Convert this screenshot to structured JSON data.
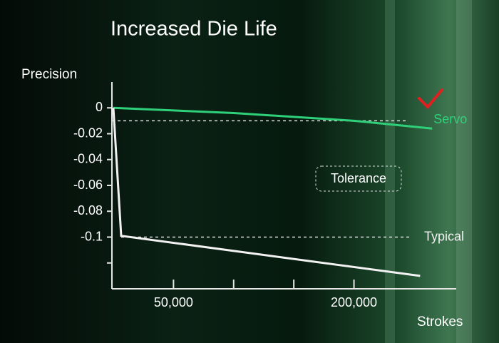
{
  "chart_data": {
    "type": "line",
    "title": "Increased Die Life",
    "y_label": "Precision",
    "x_label": "Strokes",
    "annotation": "Tolerance",
    "xlim": [
      0,
      285000
    ],
    "ylim": [
      -0.14,
      0.02
    ],
    "xticks": [
      {
        "value": 50000,
        "label": "50,000"
      },
      {
        "value": 100000,
        "label": null
      },
      {
        "value": 150000,
        "label": null
      },
      {
        "value": 200000,
        "label": "200,000"
      }
    ],
    "yticks": [
      0,
      -0.02,
      -0.04,
      -0.06,
      -0.08,
      -0.1,
      {
        "value": -0.12,
        "label": null
      }
    ],
    "reference_lines": [
      -0.01,
      -0.1
    ],
    "series": [
      {
        "name": "Servo",
        "color": "#2fd07a",
        "x": [
          0,
          100000,
          200000,
          265000
        ],
        "values": [
          0,
          -0.004,
          -0.01,
          -0.016
        ]
      },
      {
        "name": "Typical",
        "color": "#f2f2f2",
        "x": [
          0,
          6500,
          255000
        ],
        "values": [
          0,
          -0.099,
          -0.13
        ]
      }
    ]
  }
}
